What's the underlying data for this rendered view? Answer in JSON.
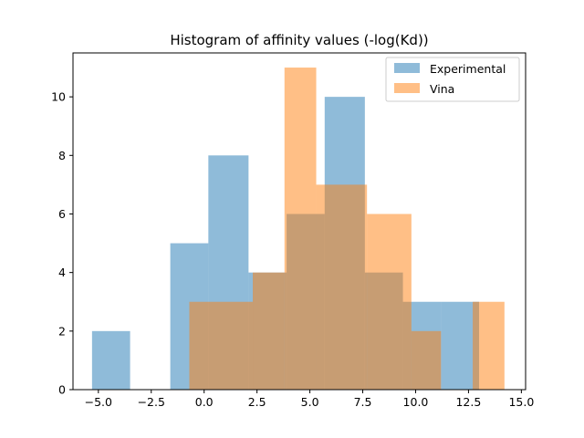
{
  "chart_data": {
    "type": "histogram",
    "title": "Histogram of affinity values (-log(Kd))",
    "xlabel": "",
    "ylabel": "",
    "xlim": [
      -6.2,
      15.2
    ],
    "ylim": [
      0,
      11.5
    ],
    "xticks": [
      -5.0,
      -2.5,
      0.0,
      2.5,
      5.0,
      7.5,
      10.0,
      12.5,
      15.0
    ],
    "xtick_labels": [
      "−5.0",
      "−2.5",
      "0.0",
      "2.5",
      "5.0",
      "7.5",
      "10.0",
      "12.5",
      "15.0"
    ],
    "yticks": [
      0,
      2,
      4,
      6,
      8,
      10
    ],
    "ytick_labels": [
      "0",
      "2",
      "4",
      "6",
      "8",
      "10"
    ],
    "legend_position": "top-right",
    "grid": false,
    "series": [
      {
        "name": "Experimental",
        "color": "#1f77b4",
        "alpha": 0.5,
        "bins": [
          {
            "x0": -5.3,
            "x1": -3.5,
            "count": 2
          },
          {
            "x0": -3.5,
            "x1": -1.6,
            "count": 0
          },
          {
            "x0": -1.6,
            "x1": 0.2,
            "count": 5
          },
          {
            "x0": 0.2,
            "x1": 2.1,
            "count": 8
          },
          {
            "x0": 2.1,
            "x1": 3.9,
            "count": 4
          },
          {
            "x0": 3.9,
            "x1": 5.7,
            "count": 6
          },
          {
            "x0": 5.7,
            "x1": 7.6,
            "count": 10
          },
          {
            "x0": 7.6,
            "x1": 9.4,
            "count": 4
          },
          {
            "x0": 9.4,
            "x1": 11.2,
            "count": 3
          },
          {
            "x0": 11.2,
            "x1": 13.0,
            "count": 3
          }
        ]
      },
      {
        "name": "Vina",
        "color": "#ff7f0e",
        "alpha": 0.5,
        "bins": [
          {
            "x0": -0.7,
            "x1": 2.3,
            "count": 3
          },
          {
            "x0": 2.3,
            "x1": 3.8,
            "count": 4
          },
          {
            "x0": 3.8,
            "x1": 5.3,
            "count": 11
          },
          {
            "x0": 5.3,
            "x1": 7.7,
            "count": 7
          },
          {
            "x0": 7.7,
            "x1": 9.8,
            "count": 6
          },
          {
            "x0": 9.8,
            "x1": 11.2,
            "count": 2
          },
          {
            "x0": 11.2,
            "x1": 12.7,
            "count": 0
          },
          {
            "x0": 12.7,
            "x1": 14.2,
            "count": 3
          }
        ]
      }
    ]
  }
}
